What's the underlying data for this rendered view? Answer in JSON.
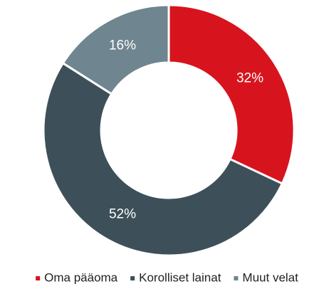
{
  "chart_data": {
    "type": "donut",
    "categories": [
      "Oma pääoma",
      "Korolliset lainat",
      "Muut velat"
    ],
    "values": [
      32,
      52,
      16
    ],
    "value_labels": [
      "32%",
      "52%",
      "16%"
    ],
    "colors": [
      "#d7141e",
      "#3d5059",
      "#6f8590"
    ],
    "legend": "bottom"
  }
}
